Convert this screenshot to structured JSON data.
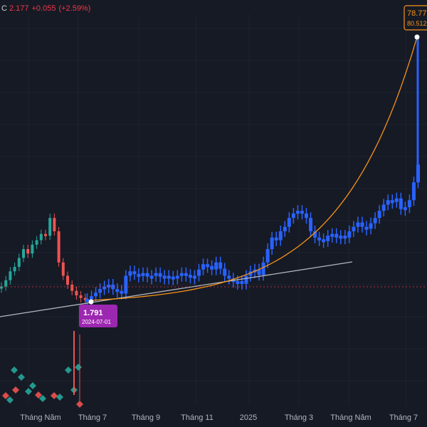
{
  "header": {
    "ohlc_label": "C",
    "close": "2.177",
    "change": "+0.055",
    "change_pct": "(+2.59%)"
  },
  "colors": {
    "background": "#161a25",
    "grid": "#1f2330",
    "candle_up": "#26a69a",
    "candle_down": "#ef5350",
    "candle_highlight": "#2962ff",
    "curve": "#f7931a",
    "trendline": "#b2b5be",
    "price_dotted": "#f23645",
    "low_box": "#9c27b0",
    "text": "#b2b5be"
  },
  "chart_data": {
    "type": "candlestick",
    "x_ticks": [
      "Tháng Năm",
      "Tháng 7",
      "Tháng 9",
      "Tháng 11",
      "2025",
      "Tháng 3",
      "Tháng Năm",
      "Tháng 7"
    ],
    "low_marker": {
      "value": "1.791",
      "date": "2024-07-01"
    },
    "high_marker": {
      "value": "78.77",
      "sub_value": "80.512"
    },
    "price_series": [
      {
        "period": "pre",
        "values": [
          1.93,
          2.0,
          2.1,
          2.15,
          2.25,
          2.35,
          2.3,
          2.4,
          2.45,
          2.52,
          2.5,
          2.7,
          2.55,
          2.2,
          2.05,
          1.95,
          1.88,
          1.83,
          1.8,
          1.79
        ]
      },
      {
        "period": "highlight",
        "values": [
          1.79,
          1.82,
          1.86,
          1.9,
          1.93,
          1.95,
          1.9,
          1.88,
          1.85,
          2.05,
          2.1,
          2.07,
          2.06,
          2.08,
          2.04,
          2.05,
          2.08,
          2.04,
          2.05,
          2.03,
          2.04,
          2.05,
          2.08,
          2.06,
          2.04,
          2.05,
          2.12,
          2.18,
          2.16,
          2.12,
          2.2,
          2.13,
          2.05,
          2.02,
          1.98,
          1.99,
          1.96,
          2.05,
          2.1,
          2.12,
          2.06,
          2.2,
          2.35,
          2.48,
          2.45,
          2.55,
          2.6,
          2.7,
          2.75,
          2.78,
          2.75,
          2.7,
          2.55,
          2.48,
          2.46,
          2.44,
          2.5,
          2.52,
          2.48,
          2.5,
          2.48,
          2.55,
          2.6,
          2.65,
          2.6,
          2.58,
          2.64,
          2.7,
          2.78,
          2.85,
          2.9,
          2.88,
          2.92,
          2.8,
          2.82,
          2.9,
          3.1,
          3.3
        ]
      }
    ]
  }
}
